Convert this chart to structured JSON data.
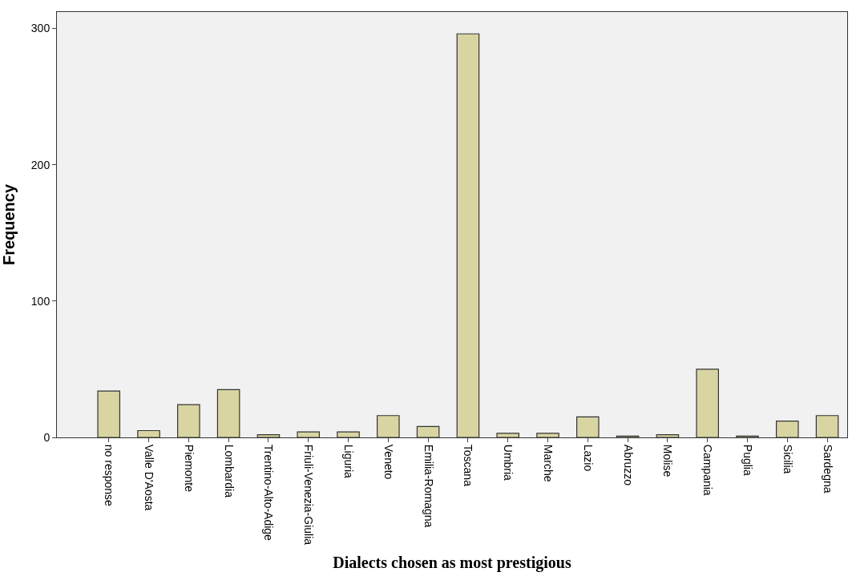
{
  "chart_data": {
    "type": "bar",
    "xlabel": "Dialects chosen as most prestigious",
    "ylabel": "Frequency",
    "categories": [
      "no response",
      "Valle D'Aosta",
      "Piemonte",
      "Lombardia",
      "Trentino-Alto-Adige",
      "Friuli-Venezia-Giulia",
      "Liguria",
      "Veneto",
      "Emilia-Romagna",
      "Toscana",
      "Umbria",
      "Marche",
      "Lazio",
      "Abruzzo",
      "Molise",
      "Campania",
      "Puglia",
      "Sicilia",
      "Sardegna"
    ],
    "values": [
      34,
      5,
      24,
      35,
      2,
      4,
      4,
      16,
      8,
      296,
      3,
      3,
      15,
      1,
      2,
      50,
      1,
      12,
      16
    ],
    "color": "#d9d5a3",
    "ylim": [
      0,
      312
    ],
    "yticks": [
      0,
      100,
      200,
      300
    ]
  }
}
